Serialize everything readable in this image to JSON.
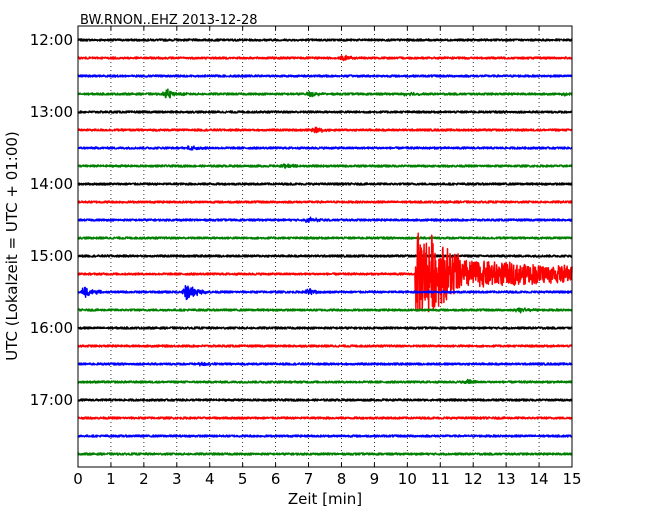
{
  "chart_data": {
    "type": "line",
    "title": "BW.RNON..EHZ 2013-12-28",
    "xlabel": "Zeit  [min]",
    "ylabel": "UTC (Lokalzeit = UTC + 01:00)",
    "xlim": [
      0,
      15
    ],
    "x_ticks": [
      "0",
      "1",
      "2",
      "3",
      "4",
      "5",
      "6",
      "7",
      "8",
      "9",
      "10",
      "11",
      "12",
      "13",
      "14",
      "15"
    ],
    "y_ticks": [
      "12:00",
      "13:00",
      "14:00",
      "15:00",
      "16:00",
      "17:00"
    ],
    "trace_start_times": [
      "12:00",
      "12:15",
      "12:30",
      "12:45",
      "13:00",
      "13:15",
      "13:30",
      "13:45",
      "14:00",
      "14:15",
      "14:30",
      "14:45",
      "15:00",
      "15:15",
      "15:30",
      "15:45",
      "16:00",
      "16:15",
      "16:30",
      "16:45",
      "17:00",
      "17:15",
      "17:30",
      "17:45"
    ],
    "trace_interval_min": 15,
    "grid": "vertical dotted at each minute",
    "colors": [
      "#000000",
      "#ff0000",
      "#0000ff",
      "#008000"
    ],
    "events": [
      {
        "trace": "12:15",
        "time_min": 8.0,
        "amplitude": 0.3
      },
      {
        "trace": "12:45",
        "time_min": 2.7,
        "amplitude": 0.55
      },
      {
        "trace": "12:45",
        "time_min": 7.0,
        "amplitude": 0.3
      },
      {
        "trace": "12:45",
        "time_min": 10.0,
        "amplitude": 0.25
      },
      {
        "trace": "12:45",
        "time_min": 14.7,
        "amplitude": 0.25
      },
      {
        "trace": "13:15",
        "time_min": 7.2,
        "amplitude": 0.3
      },
      {
        "trace": "13:30",
        "time_min": 3.4,
        "amplitude": 0.3
      },
      {
        "trace": "13:45",
        "time_min": 6.3,
        "amplitude": 0.25
      },
      {
        "trace": "14:30",
        "time_min": 7.0,
        "amplitude": 0.3
      },
      {
        "trace": "15:15",
        "time_min": 10.25,
        "amplitude": 4.5
      },
      {
        "trace": "15:30",
        "time_min": 0.2,
        "amplitude": 0.6
      },
      {
        "trace": "15:30",
        "time_min": 3.3,
        "amplitude": 1.0
      },
      {
        "trace": "15:30",
        "time_min": 7.0,
        "amplitude": 0.35
      },
      {
        "trace": "15:45",
        "time_min": 13.4,
        "amplitude": 0.3
      },
      {
        "trace": "16:30",
        "time_min": 3.7,
        "amplitude": 0.2
      },
      {
        "trace": "16:45",
        "time_min": 11.8,
        "amplitude": 0.25
      }
    ]
  }
}
